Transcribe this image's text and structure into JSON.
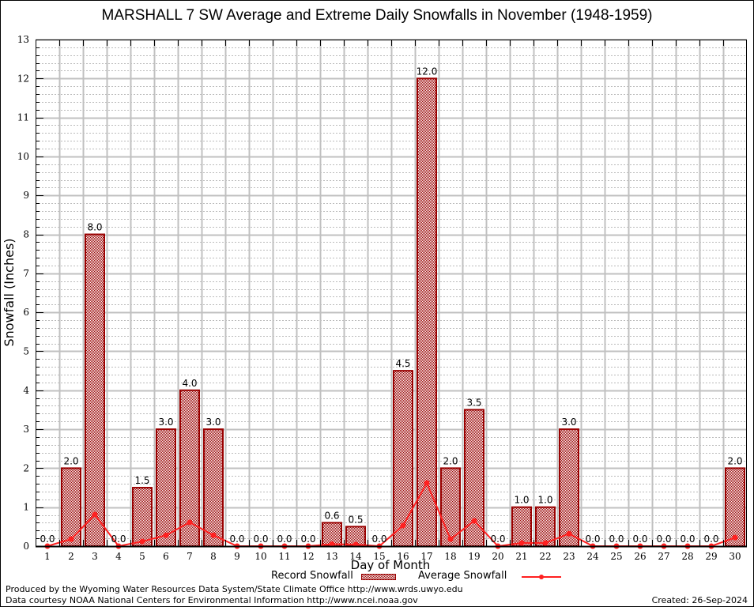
{
  "chart_data": {
    "type": "bar",
    "title": "MARSHALL 7 SW Average and Extreme Daily Snowfalls in November (1948-1959)",
    "xlabel": "Day of Month",
    "ylabel": "Snowfall (Inches)",
    "ylim": [
      0,
      13
    ],
    "yticks": [
      "0",
      "1",
      "2",
      "3",
      "4",
      "5",
      "6",
      "7",
      "8",
      "9",
      "10",
      "11",
      "12",
      "13"
    ],
    "grid": true,
    "legend_position": "bottom-center",
    "categories": [
      "1",
      "2",
      "3",
      "4",
      "5",
      "6",
      "7",
      "8",
      "9",
      "10",
      "11",
      "12",
      "13",
      "14",
      "15",
      "16",
      "17",
      "18",
      "19",
      "20",
      "21",
      "22",
      "23",
      "24",
      "25",
      "26",
      "27",
      "28",
      "29",
      "30"
    ],
    "series": [
      {
        "name": "Record Snowfall",
        "type": "bar",
        "color": "#990000",
        "values": [
          0.0,
          2.0,
          8.0,
          0.0,
          1.5,
          3.0,
          4.0,
          3.0,
          0.0,
          0.0,
          0.0,
          0.0,
          0.6,
          0.5,
          0.0,
          4.5,
          12.0,
          2.0,
          3.5,
          0.0,
          1.0,
          1.0,
          3.0,
          0.0,
          0.0,
          0.0,
          0.0,
          0.0,
          0.0,
          2.0
        ],
        "labels": [
          "0.0",
          "2.0",
          "8.0",
          "0.0",
          "1.5",
          "3.0",
          "4.0",
          "3.0",
          "0.0",
          "0.0",
          "0.0",
          "0.0",
          "0.6",
          "0.5",
          "0.0",
          "4.5",
          "12.0",
          "2.0",
          "3.5",
          "0.0",
          "1.0",
          "1.0",
          "3.0",
          "0.0",
          "0.0",
          "0.0",
          "0.0",
          "0.0",
          "0.0",
          "2.0"
        ]
      },
      {
        "name": "Average Snowfall",
        "type": "line",
        "color": "#ff2020",
        "values": [
          0.0,
          0.18,
          0.81,
          0.0,
          0.12,
          0.28,
          0.61,
          0.28,
          0.0,
          0.0,
          0.0,
          0.0,
          0.05,
          0.04,
          0.0,
          0.53,
          1.62,
          0.18,
          0.65,
          0.0,
          0.08,
          0.08,
          0.32,
          0.0,
          0.0,
          0.0,
          0.0,
          0.0,
          0.0,
          0.22
        ]
      }
    ]
  },
  "legend": {
    "record_label": "Record Snowfall",
    "average_label": "Average Snowfall"
  },
  "footer": {
    "produced_by": "Produced by the Wyoming Water Resources Data System/State Climate Office http://www.wrds.uwyo.edu",
    "data_courtesy": "Data courtesy NOAA National Centers for Environmental Information http://www.ncei.noaa.gov",
    "created": "Created: 26-Sep-2024"
  }
}
